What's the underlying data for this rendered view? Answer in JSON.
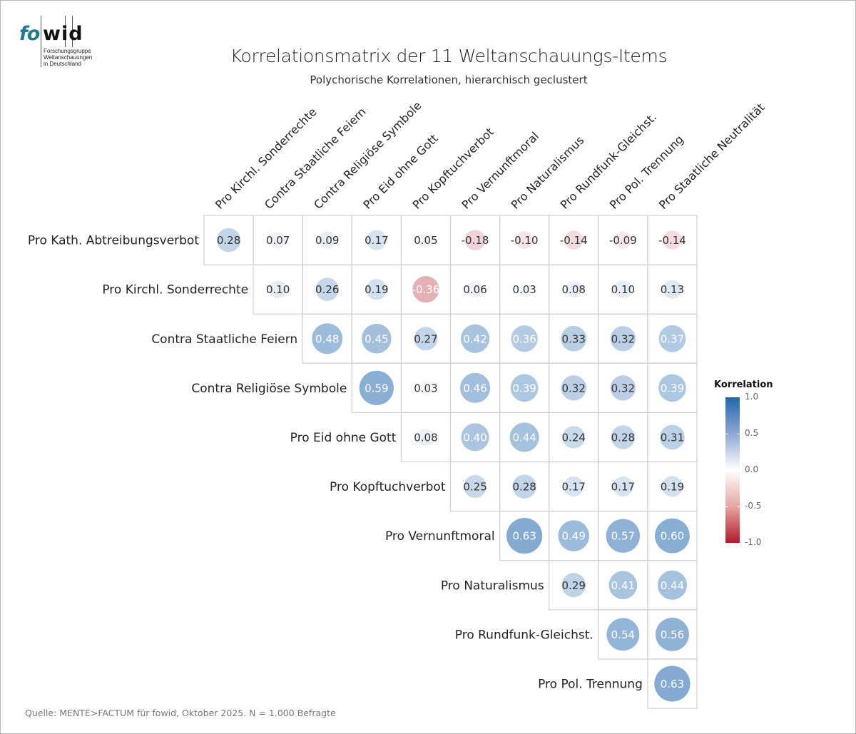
{
  "logo": {
    "brand_part1": "fo",
    "brand_part2": "wid",
    "tagline": "Forschungsgruppe\nWeltanschauungen\nin Deutschland"
  },
  "header": {
    "title": "Korrelationsmatrix der 11 Weltanschauungs-Items",
    "subtitle": "Polychorische Korrelationen, hierarchisch geclustert"
  },
  "footer": {
    "source": "Quelle: MENTE>FACTUM für fowid, Oktober 2025. N = 1.000 Befragte"
  },
  "legend": {
    "title": "Korrelation",
    "ticks": [
      "1.0",
      "0.5",
      "0.0",
      "-0.5",
      "-1.0"
    ],
    "tick_values": [
      1.0,
      0.5,
      0.0,
      -0.5,
      -1.0
    ],
    "color_high": "#2166ac",
    "color_mid": "#ffffff",
    "color_low": "#b2182b"
  },
  "chart_data": {
    "type": "heatmap",
    "title": "Korrelationsmatrix der 11 Weltanschauungs-Items",
    "subtitle": "Polychorische Korrelationen, hierarchisch geclustert",
    "layout": "upper-triangle correlation matrix with sized/colored circles",
    "value_range": [
      -1.0,
      1.0
    ],
    "rows": [
      "Pro Kath. Abtreibungsverbot",
      "Pro Kirchl. Sonderrechte",
      "Contra Staatliche Feiern",
      "Contra Religiöse Symbole",
      "Pro Eid ohne Gott",
      "Pro Kopftuchverbot",
      "Pro Vernunftmoral",
      "Pro Naturalismus",
      "Pro Rundfunk-Gleichst.",
      "Pro Pol. Trennung"
    ],
    "columns": [
      "Pro Kirchl. Sonderrechte",
      "Contra Staatliche Feiern",
      "Contra Religiöse Symbole",
      "Pro Eid ohne Gott",
      "Pro Kopftuchverbot",
      "Pro Vernunftmoral",
      "Pro Naturalismus",
      "Pro Rundfunk-Gleichst.",
      "Pro Pol. Trennung",
      "Pro Staatliche Neutralität"
    ],
    "values": [
      [
        0.28,
        0.07,
        0.09,
        0.17,
        0.05,
        -0.18,
        -0.1,
        -0.14,
        -0.09,
        -0.14
      ],
      [
        null,
        0.1,
        0.26,
        0.19,
        -0.36,
        0.06,
        0.03,
        0.08,
        0.1,
        0.13
      ],
      [
        null,
        null,
        0.48,
        0.45,
        0.27,
        0.42,
        0.36,
        0.33,
        0.32,
        0.37
      ],
      [
        null,
        null,
        null,
        0.59,
        0.03,
        0.46,
        0.39,
        0.32,
        0.32,
        0.39
      ],
      [
        null,
        null,
        null,
        null,
        0.08,
        0.4,
        0.44,
        0.24,
        0.28,
        0.31
      ],
      [
        null,
        null,
        null,
        null,
        null,
        0.25,
        0.28,
        0.17,
        0.17,
        0.19
      ],
      [
        null,
        null,
        null,
        null,
        null,
        null,
        0.63,
        0.49,
        0.57,
        0.6
      ],
      [
        null,
        null,
        null,
        null,
        null,
        null,
        null,
        0.29,
        0.41,
        0.44
      ],
      [
        null,
        null,
        null,
        null,
        null,
        null,
        null,
        null,
        0.54,
        0.56
      ],
      [
        null,
        null,
        null,
        null,
        null,
        null,
        null,
        null,
        null,
        0.63
      ]
    ],
    "labels": [
      [
        "0.28",
        "0.07",
        "0.09",
        "0.17",
        "0.05",
        "-0.18",
        "-0.10",
        "-0.14",
        "-0.09",
        "-0.14"
      ],
      [
        null,
        "0.10",
        "0.26",
        "0.19",
        "-0.36",
        "0.06",
        "0.03",
        "0.08",
        "0.10",
        "0.13"
      ],
      [
        null,
        null,
        "0.48",
        "0.45",
        "0.27",
        "0.42",
        "0.36",
        "0.33",
        "0.32",
        "0.37"
      ],
      [
        null,
        null,
        null,
        "0.59",
        "0.03",
        "0.46",
        "0.39",
        "0.32",
        "0.32",
        "0.39"
      ],
      [
        null,
        null,
        null,
        null,
        "0.08",
        "0.40",
        "0.44",
        "0.24",
        "0.28",
        "0.31"
      ],
      [
        null,
        null,
        null,
        null,
        null,
        "0.25",
        "0.28",
        "0.17",
        "0.17",
        "0.19"
      ],
      [
        null,
        null,
        null,
        null,
        null,
        null,
        "0.63",
        "0.49",
        "0.57",
        "0.60"
      ],
      [
        null,
        null,
        null,
        null,
        null,
        null,
        null,
        "0.29",
        "0.41",
        "0.44"
      ],
      [
        null,
        null,
        null,
        null,
        null,
        null,
        null,
        null,
        "0.54",
        "0.56"
      ],
      [
        null,
        null,
        null,
        null,
        null,
        null,
        null,
        null,
        null,
        "0.63"
      ]
    ],
    "legend": {
      "title": "Korrelation",
      "position": "right",
      "range": [
        -1.0,
        1.0
      ]
    },
    "source": "Quelle: MENTE>FACTUM für fowid, Oktober 2025. N = 1.000 Befragte"
  }
}
